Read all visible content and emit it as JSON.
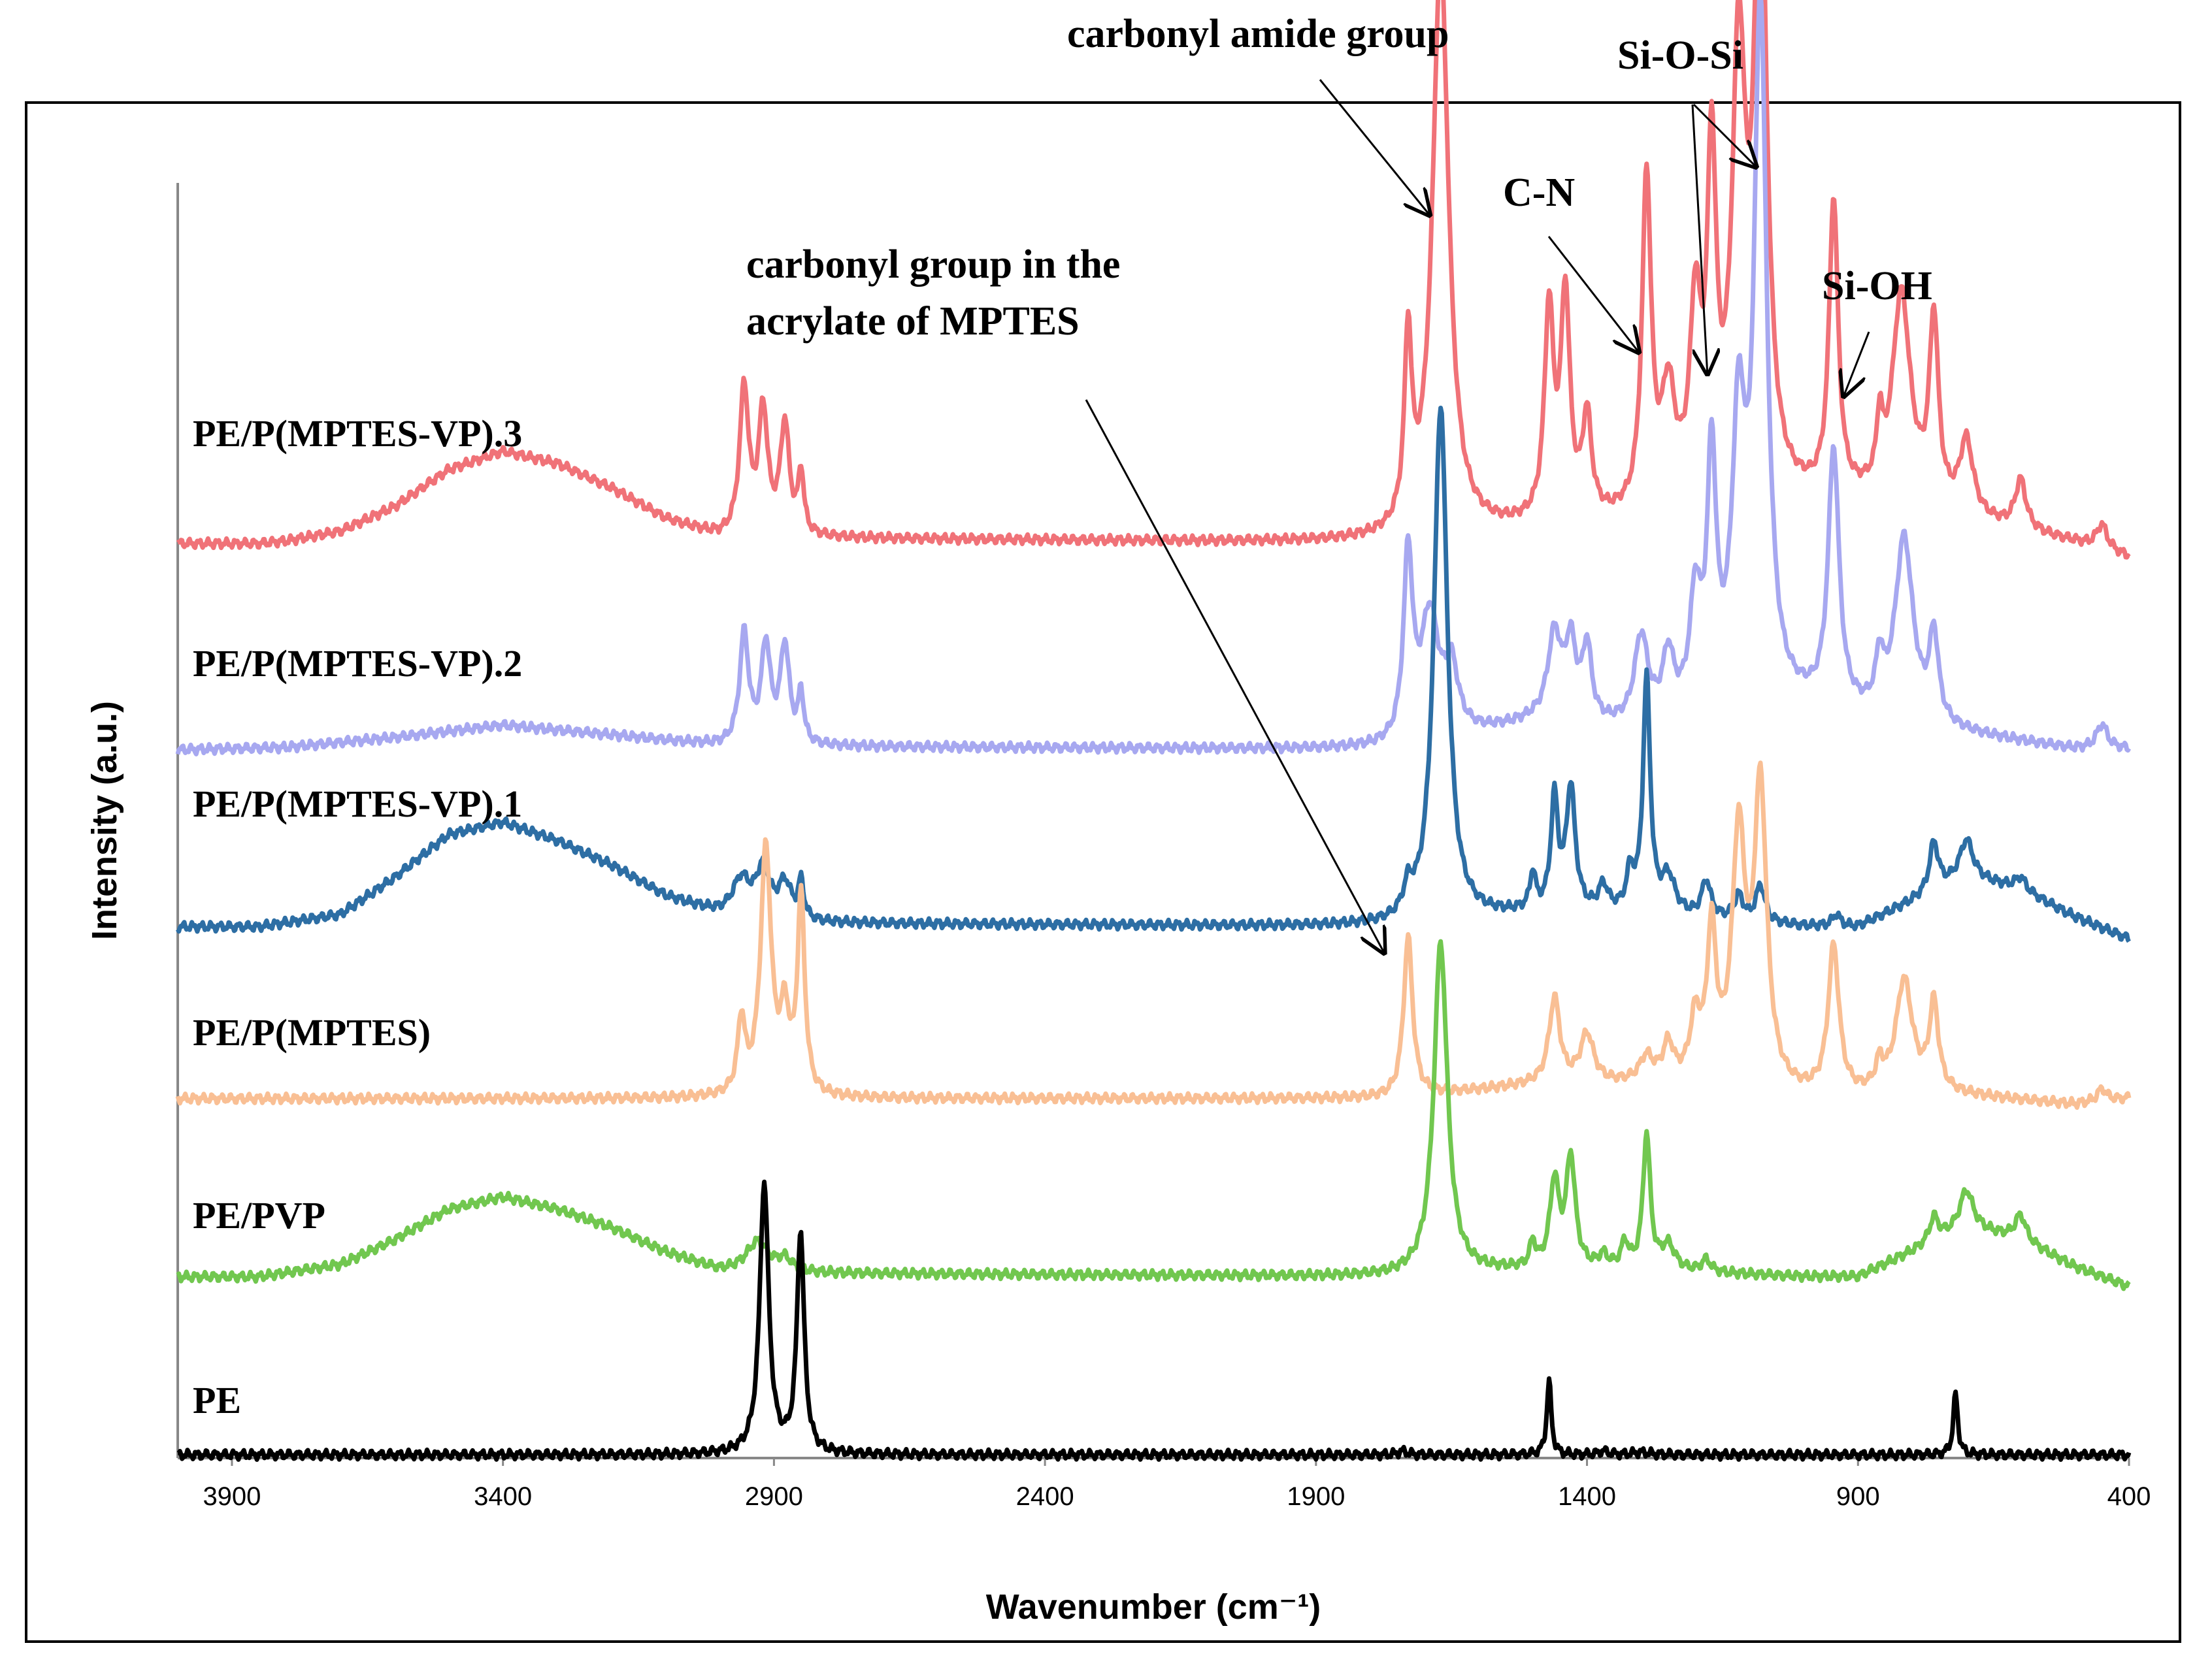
{
  "chart_data": {
    "type": "line",
    "title": "",
    "xlabel": "Wavenumber (cm⁻¹)",
    "ylabel": "Intensity  (a.u.)",
    "xlim": [
      4000,
      400
    ],
    "x_reversed": true,
    "ylim": [
      0,
      1
    ],
    "xticks": [
      3900,
      3400,
      2900,
      2400,
      1900,
      1400,
      900,
      400
    ],
    "x_tick_labels": [
      "3900",
      "3400",
      "2900",
      "2400",
      "1900",
      "1400",
      "900",
      "400"
    ],
    "y_ticks_shown": false,
    "grid": false,
    "legend": "labels placed left of each trace",
    "series": [
      {
        "name": "PE/P(MPTES-VP).3",
        "color": "#f07278",
        "offset": 0.742,
        "baseline": [
          [
            4000,
            0.0
          ],
          [
            3850,
            0.0
          ],
          [
            3800,
            0.002
          ],
          [
            3700,
            0.01
          ],
          [
            3600,
            0.03
          ],
          [
            3500,
            0.06
          ],
          [
            3400,
            0.075
          ],
          [
            3300,
            0.065
          ],
          [
            3200,
            0.045
          ],
          [
            3100,
            0.02
          ],
          [
            3000,
            0.005
          ],
          [
            1760,
            0.0
          ],
          [
            1500,
            0.01
          ],
          [
            1330,
            0.015
          ],
          [
            1000,
            0.03
          ],
          [
            850,
            0.03
          ],
          [
            500,
            0.0
          ],
          [
            400,
            -0.012
          ]
        ],
        "peaks": [
          [
            2955,
            0.12,
            10
          ],
          [
            2920,
            0.1,
            10
          ],
          [
            2880,
            0.09,
            10
          ],
          [
            2850,
            0.05,
            6
          ],
          [
            1730,
            0.15,
            8
          ],
          [
            1670,
            0.47,
            18
          ],
          [
            1470,
            0.17,
            10
          ],
          [
            1440,
            0.18,
            10
          ],
          [
            1400,
            0.08,
            10
          ],
          [
            1290,
            0.27,
            10
          ],
          [
            1250,
            0.09,
            15
          ],
          [
            1200,
            0.15,
            12
          ],
          [
            1170,
            0.27,
            10
          ],
          [
            1120,
            0.35,
            15
          ],
          [
            1080,
            0.51,
            14
          ],
          [
            945,
            0.24,
            10
          ],
          [
            860,
            0.05,
            6
          ],
          [
            820,
            0.17,
            20
          ],
          [
            760,
            0.15,
            10
          ],
          [
            700,
            0.06,
            15
          ],
          [
            600,
            0.04,
            12
          ],
          [
            450,
            0.02,
            12
          ]
        ]
      },
      {
        "name": "PE/P(MPTES-VP).2",
        "color": "#a7a8f0",
        "offset": 0.574,
        "baseline": [
          [
            4000,
            0.0
          ],
          [
            3800,
            0.002
          ],
          [
            3600,
            0.01
          ],
          [
            3400,
            0.02
          ],
          [
            3200,
            0.012
          ],
          [
            3000,
            0.003
          ],
          [
            1760,
            0.0
          ],
          [
            1500,
            0.02
          ],
          [
            1330,
            0.015
          ],
          [
            1000,
            0.03
          ],
          [
            850,
            0.02
          ],
          [
            500,
            0.0
          ],
          [
            400,
            0.0
          ]
        ],
        "peaks": [
          [
            2955,
            0.09,
            10
          ],
          [
            2915,
            0.08,
            10
          ],
          [
            2880,
            0.08,
            10
          ],
          [
            2850,
            0.04,
            6
          ],
          [
            1730,
            0.15,
            10
          ],
          [
            1690,
            0.1,
            20
          ],
          [
            1650,
            0.05,
            15
          ],
          [
            1460,
            0.07,
            15
          ],
          [
            1430,
            0.06,
            12
          ],
          [
            1400,
            0.06,
            10
          ],
          [
            1300,
            0.07,
            15
          ],
          [
            1250,
            0.05,
            12
          ],
          [
            1200,
            0.09,
            12
          ],
          [
            1170,
            0.2,
            10
          ],
          [
            1120,
            0.22,
            15
          ],
          [
            1080,
            0.56,
            14
          ],
          [
            945,
            0.21,
            12
          ],
          [
            860,
            0.04,
            8
          ],
          [
            815,
            0.15,
            20
          ],
          [
            760,
            0.07,
            10
          ],
          [
            450,
            0.02,
            12
          ]
        ]
      },
      {
        "name": "PE/P(MPTES-VP).1",
        "color": "#2d6ea4",
        "offset": 0.43,
        "baseline": [
          [
            4000,
            0.0
          ],
          [
            3850,
            0.0
          ],
          [
            3700,
            0.01
          ],
          [
            3600,
            0.04
          ],
          [
            3500,
            0.075
          ],
          [
            3400,
            0.085
          ],
          [
            3300,
            0.07
          ],
          [
            3200,
            0.05
          ],
          [
            3100,
            0.025
          ],
          [
            3000,
            0.01
          ],
          [
            2900,
            0.003
          ],
          [
            1760,
            0.0
          ],
          [
            1500,
            0.01
          ],
          [
            1330,
            0.01
          ],
          [
            1000,
            0.0
          ],
          [
            900,
            0.0
          ],
          [
            800,
            0.02
          ],
          [
            700,
            0.04
          ],
          [
            600,
            0.03
          ],
          [
            500,
            0.008
          ],
          [
            400,
            -0.01
          ]
        ],
        "peaks": [
          [
            2960,
            0.03,
            20
          ],
          [
            2920,
            0.04,
            15
          ],
          [
            2880,
            0.03,
            15
          ],
          [
            2850,
            0.03,
            6
          ],
          [
            1730,
            0.02,
            10
          ],
          [
            1670,
            0.42,
            15
          ],
          [
            1500,
            0.03,
            6
          ],
          [
            1460,
            0.09,
            8
          ],
          [
            1430,
            0.1,
            10
          ],
          [
            1370,
            0.02,
            10
          ],
          [
            1320,
            0.03,
            8
          ],
          [
            1290,
            0.19,
            8
          ],
          [
            1250,
            0.03,
            15
          ],
          [
            1180,
            0.03,
            10
          ],
          [
            1120,
            0.02,
            10
          ],
          [
            1080,
            0.03,
            10
          ],
          [
            940,
            0.01,
            8
          ],
          [
            760,
            0.04,
            10
          ],
          [
            700,
            0.03,
            15
          ],
          [
            600,
            0.01,
            12
          ]
        ]
      },
      {
        "name": "PE/P(MPTES)",
        "color": "#f9bf94",
        "offset": 0.29,
        "baseline": [
          [
            4000,
            0.0
          ],
          [
            3000,
            0.0
          ],
          [
            1760,
            0.0
          ],
          [
            1500,
            0.01
          ],
          [
            1300,
            0.01
          ],
          [
            1000,
            0.0
          ],
          [
            900,
            0.0
          ],
          [
            800,
            0.005
          ],
          [
            500,
            -0.005
          ],
          [
            400,
            0.0
          ]
        ],
        "peaks": [
          [
            2960,
            0.06,
            8
          ],
          [
            2915,
            0.2,
            12
          ],
          [
            2880,
            0.06,
            10
          ],
          [
            2850,
            0.16,
            8
          ],
          [
            1730,
            0.13,
            10
          ],
          [
            1460,
            0.07,
            12
          ],
          [
            1400,
            0.04,
            15
          ],
          [
            1290,
            0.02,
            15
          ],
          [
            1250,
            0.03,
            12
          ],
          [
            1200,
            0.05,
            12
          ],
          [
            1170,
            0.12,
            10
          ],
          [
            1120,
            0.2,
            15
          ],
          [
            1080,
            0.24,
            14
          ],
          [
            945,
            0.12,
            12
          ],
          [
            860,
            0.02,
            8
          ],
          [
            815,
            0.09,
            18
          ],
          [
            760,
            0.07,
            10
          ],
          [
            450,
            0.01,
            10
          ]
        ]
      },
      {
        "name": "PE/PVP",
        "color": "#71c74f",
        "offset": 0.145,
        "baseline": [
          [
            4000,
            0.0
          ],
          [
            3850,
            0.0
          ],
          [
            3700,
            0.01
          ],
          [
            3600,
            0.03
          ],
          [
            3500,
            0.055
          ],
          [
            3400,
            0.065
          ],
          [
            3300,
            0.055
          ],
          [
            3200,
            0.04
          ],
          [
            3100,
            0.02
          ],
          [
            3000,
            0.005
          ],
          [
            2900,
            0.003
          ],
          [
            1760,
            0.0
          ],
          [
            1500,
            0.005
          ],
          [
            1330,
            0.005
          ],
          [
            1000,
            0.0
          ],
          [
            900,
            0.0
          ],
          [
            800,
            0.02
          ],
          [
            700,
            0.04
          ],
          [
            600,
            0.03
          ],
          [
            500,
            0.008
          ],
          [
            400,
            -0.008
          ]
        ],
        "peaks": [
          [
            2930,
            0.025,
            25
          ],
          [
            2880,
            0.01,
            15
          ],
          [
            1670,
            0.27,
            15
          ],
          [
            1500,
            0.02,
            6
          ],
          [
            1460,
            0.07,
            10
          ],
          [
            1430,
            0.09,
            10
          ],
          [
            1370,
            0.01,
            10
          ],
          [
            1330,
            0.02,
            8
          ],
          [
            1290,
            0.11,
            8
          ],
          [
            1250,
            0.02,
            15
          ],
          [
            1180,
            0.01,
            10
          ],
          [
            760,
            0.02,
            10
          ],
          [
            700,
            0.03,
            15
          ],
          [
            600,
            0.02,
            12
          ]
        ]
      },
      {
        "name": "PE",
        "color": "#000000",
        "offset": 0.0,
        "baseline": [
          [
            4000,
            0.0
          ],
          [
            400,
            0.0
          ]
        ],
        "peaks": [
          [
            2918,
            0.22,
            10
          ],
          [
            2851,
            0.18,
            8
          ],
          [
            1740,
            0.003,
            10
          ],
          [
            1470,
            0.06,
            5
          ],
          [
            1370,
            0.003,
            10
          ],
          [
            1300,
            0.002,
            20
          ],
          [
            720,
            0.05,
            5
          ]
        ]
      }
    ],
    "annotations": [
      {
        "text": "carbonyl amide group",
        "arrow_to_x": 1670,
        "arrow_to_series": "PE/P(MPTES-VP).3"
      },
      {
        "text": "C-N",
        "arrow_to_x": 1290,
        "arrow_to_series": "PE/P(MPTES-VP).3"
      },
      {
        "text": "Si-O-Si",
        "arrow_to_x": [
          1170,
          1080
        ],
        "arrow_to_series": "PE/P(MPTES-VP).3"
      },
      {
        "text": "Si-OH",
        "arrow_to_x": 945,
        "arrow_to_series": "PE/P(MPTES-VP).3"
      },
      {
        "text_lines": [
          "carbonyl group in the",
          "acrylate of MPTES"
        ],
        "arrow_to_x": 1730,
        "arrow_to_series": "PE/P(MPTES)"
      }
    ]
  }
}
